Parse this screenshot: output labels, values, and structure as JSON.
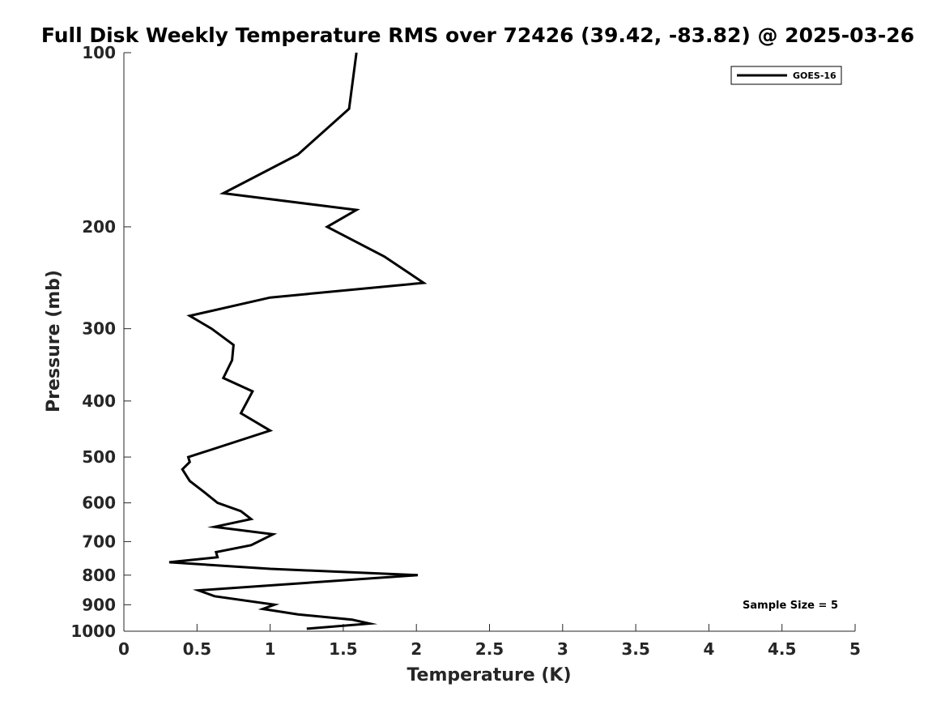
{
  "chart_data": {
    "type": "line",
    "title": "Full Disk Weekly Temperature RMS over 72426 (39.42, -83.82) @ 2025-03-26",
    "xlabel": "Temperature (K)",
    "ylabel": "Pressure (mb)",
    "xlim": [
      0,
      5
    ],
    "ylim": [
      100,
      1000
    ],
    "y_scale": "log",
    "y_reversed": true,
    "xticks": [
      0,
      0.5,
      1,
      1.5,
      2,
      2.5,
      3,
      3.5,
      4,
      4.5,
      5
    ],
    "xtick_labels": [
      "0",
      "0.5",
      "1",
      "1.5",
      "2",
      "2.5",
      "3",
      "3.5",
      "4",
      "4.5",
      "5"
    ],
    "yticks": [
      100,
      200,
      300,
      400,
      500,
      600,
      700,
      800,
      900,
      1000
    ],
    "ytick_labels": [
      "100",
      "200",
      "300",
      "400",
      "500",
      "600",
      "700",
      "800",
      "900",
      "1000"
    ],
    "grid": false,
    "legend_position": "top-right",
    "annotation": "Sample Size = 5",
    "series": [
      {
        "name": "GOES-16",
        "color": "#000000",
        "points": [
          [
            1.59,
            100
          ],
          [
            1.54,
            125
          ],
          [
            1.19,
            150
          ],
          [
            0.68,
            175
          ],
          [
            1.59,
            187
          ],
          [
            1.39,
            200
          ],
          [
            1.78,
            225
          ],
          [
            2.05,
            250
          ],
          [
            1.0,
            265
          ],
          [
            0.45,
            285
          ],
          [
            0.6,
            300
          ],
          [
            0.75,
            320
          ],
          [
            0.74,
            340
          ],
          [
            0.68,
            365
          ],
          [
            0.88,
            385
          ],
          [
            0.8,
            420
          ],
          [
            1.0,
            450
          ],
          [
            0.44,
            500
          ],
          [
            0.45,
            510
          ],
          [
            0.4,
            525
          ],
          [
            0.45,
            550
          ],
          [
            0.55,
            575
          ],
          [
            0.64,
            600
          ],
          [
            0.8,
            620
          ],
          [
            0.87,
            640
          ],
          [
            0.62,
            660
          ],
          [
            1.02,
            680
          ],
          [
            0.87,
            710
          ],
          [
            0.63,
            730
          ],
          [
            0.64,
            745
          ],
          [
            0.31,
            760
          ],
          [
            1.0,
            780
          ],
          [
            2.01,
            800
          ],
          [
            0.51,
            850
          ],
          [
            0.62,
            870
          ],
          [
            1.03,
            900
          ],
          [
            0.95,
            915
          ],
          [
            1.19,
            935
          ],
          [
            1.56,
            955
          ],
          [
            1.68,
            970
          ],
          [
            1.25,
            990
          ]
        ]
      }
    ]
  }
}
